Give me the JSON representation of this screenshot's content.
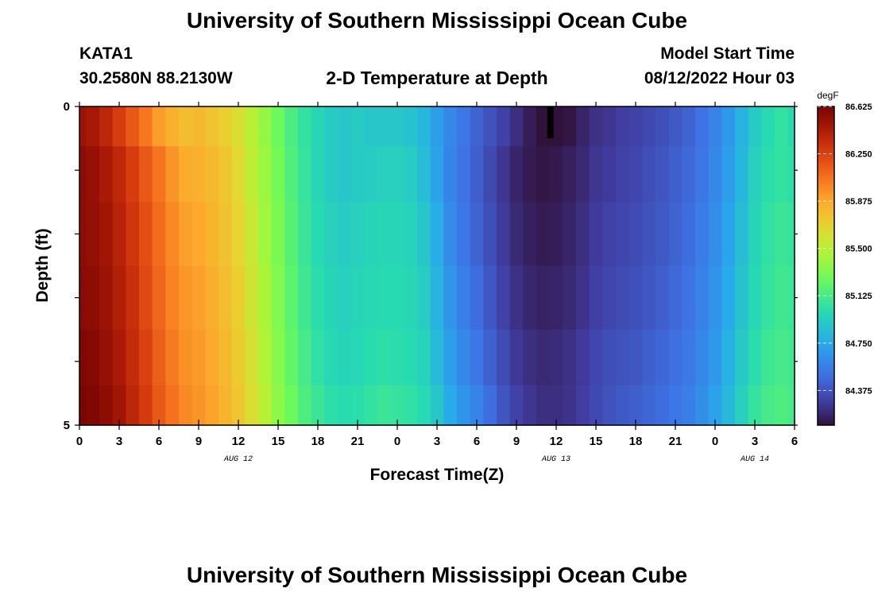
{
  "page": {
    "title": "University of Southern Mississippi Ocean Cube",
    "station": "KATA1",
    "coords": "30.2580N  88.2130W",
    "plot_title": "2-D Temperature at Depth",
    "start_label": "Model Start Time",
    "start_value": "08/12/2022 Hour 03",
    "footer_title": "University of Southern Mississippi Ocean Cube"
  },
  "chart_data": {
    "type": "heatmap",
    "title": "2-D Temperature at Depth",
    "xlabel": "Forecast Time(Z)",
    "ylabel": "Depth (ft)",
    "colorbar_unit": "degF",
    "x_range_hours": [
      0,
      54
    ],
    "y_range": [
      0,
      5
    ],
    "x_ticks": [
      {
        "hour": 0,
        "label": "0"
      },
      {
        "hour": 3,
        "label": "3"
      },
      {
        "hour": 6,
        "label": "6"
      },
      {
        "hour": 9,
        "label": "9"
      },
      {
        "hour": 12,
        "label": "12"
      },
      {
        "hour": 15,
        "label": "15"
      },
      {
        "hour": 18,
        "label": "18"
      },
      {
        "hour": 21,
        "label": "21"
      },
      {
        "hour": 24,
        "label": "0"
      },
      {
        "hour": 27,
        "label": "3"
      },
      {
        "hour": 30,
        "label": "6"
      },
      {
        "hour": 33,
        "label": "9"
      },
      {
        "hour": 36,
        "label": "12"
      },
      {
        "hour": 39,
        "label": "15"
      },
      {
        "hour": 42,
        "label": "18"
      },
      {
        "hour": 45,
        "label": "21"
      },
      {
        "hour": 48,
        "label": "0"
      },
      {
        "hour": 51,
        "label": "3"
      },
      {
        "hour": 54,
        "label": "6"
      }
    ],
    "y_ticks": [
      {
        "value": 0,
        "label": "0"
      },
      {
        "value": 5,
        "label": "5"
      }
    ],
    "date_labels": [
      {
        "hour": 12,
        "label": "AUG 12"
      },
      {
        "hour": 36,
        "label": "AUG 13"
      },
      {
        "hour": 51,
        "label": "AUG 14"
      }
    ],
    "colorbar_min": 84.1,
    "colorbar_max": 86.625,
    "colorbar_ticks": [
      "86.625",
      "86.250",
      "85.875",
      "85.500",
      "85.125",
      "84.750",
      "84.375"
    ],
    "colorbar_tick_values": [
      86.625,
      86.25,
      85.875,
      85.5,
      85.125,
      84.75,
      84.375
    ],
    "depth_levels": [
      0.25,
      1.0,
      2.0,
      3.0,
      4.0,
      4.75
    ],
    "time_hours": [
      0,
      1,
      2,
      3,
      4,
      5,
      6,
      7,
      8,
      9,
      10,
      11,
      12,
      13,
      14,
      15,
      16,
      17,
      18,
      19,
      20,
      21,
      22,
      23,
      24,
      25,
      26,
      27,
      28,
      29,
      30,
      31,
      32,
      33,
      34,
      35,
      36,
      37,
      38,
      39,
      40,
      41,
      42,
      43,
      44,
      45,
      46,
      47,
      48,
      49,
      50,
      51,
      52,
      53,
      54
    ],
    "temperature_degF": [
      [
        86.5,
        86.46,
        86.38,
        86.27,
        86.16,
        86.04,
        85.91,
        85.84,
        85.78,
        85.8,
        85.75,
        85.7,
        85.62,
        85.5,
        85.38,
        85.25,
        85.14,
        85.05,
        84.98,
        84.92,
        84.9,
        84.92,
        84.9,
        84.9,
        84.9,
        84.88,
        84.82,
        84.7,
        84.6,
        84.52,
        84.44,
        84.37,
        84.3,
        84.22,
        84.15,
        84.1,
        84.08,
        84.12,
        84.18,
        84.23,
        84.25,
        84.28,
        84.3,
        84.33,
        84.36,
        84.4,
        84.44,
        84.5,
        84.58,
        84.68,
        84.8,
        84.92,
        85.0,
        85.05,
        85.0
      ],
      [
        86.55,
        86.52,
        86.45,
        86.37,
        86.27,
        86.16,
        86.05,
        85.94,
        85.86,
        85.84,
        85.8,
        85.74,
        85.65,
        85.52,
        85.4,
        85.28,
        85.16,
        85.06,
        84.98,
        84.92,
        84.9,
        84.92,
        84.93,
        84.95,
        84.95,
        84.93,
        84.85,
        84.72,
        84.58,
        84.5,
        84.42,
        84.33,
        84.25,
        84.18,
        84.14,
        84.12,
        84.13,
        84.16,
        84.2,
        84.25,
        84.27,
        84.3,
        84.32,
        84.35,
        84.38,
        84.42,
        84.46,
        84.52,
        84.6,
        84.7,
        84.82,
        84.95,
        85.02,
        85.05,
        85.02
      ],
      [
        86.55,
        86.53,
        86.48,
        86.4,
        86.3,
        86.2,
        86.08,
        85.98,
        85.9,
        85.87,
        85.82,
        85.76,
        85.68,
        85.55,
        85.42,
        85.3,
        85.18,
        85.08,
        85.0,
        84.95,
        84.93,
        84.95,
        84.97,
        84.98,
        84.98,
        84.96,
        84.9,
        84.77,
        84.62,
        84.52,
        84.44,
        84.35,
        84.27,
        84.2,
        84.16,
        84.14,
        84.15,
        84.18,
        84.22,
        84.27,
        84.3,
        84.32,
        84.34,
        84.37,
        84.4,
        84.44,
        84.48,
        84.55,
        84.63,
        84.73,
        84.85,
        84.97,
        85.04,
        85.08,
        85.05
      ],
      [
        86.57,
        86.55,
        86.5,
        86.42,
        86.33,
        86.22,
        86.1,
        86.0,
        85.93,
        85.9,
        85.85,
        85.78,
        85.7,
        85.57,
        85.45,
        85.32,
        85.2,
        85.1,
        85.02,
        84.97,
        84.95,
        84.97,
        84.99,
        85.0,
        85.0,
        84.98,
        84.93,
        84.8,
        84.66,
        84.56,
        84.48,
        84.39,
        84.3,
        84.23,
        84.19,
        84.17,
        84.18,
        84.2,
        84.24,
        84.29,
        84.32,
        84.34,
        84.36,
        84.39,
        84.42,
        84.46,
        84.5,
        84.57,
        84.65,
        84.76,
        84.88,
        84.99,
        85.06,
        85.1,
        85.08
      ],
      [
        86.6,
        86.58,
        86.52,
        86.45,
        86.35,
        86.25,
        86.13,
        86.03,
        85.95,
        85.92,
        85.87,
        85.8,
        85.72,
        85.6,
        85.47,
        85.34,
        85.22,
        85.12,
        85.04,
        84.99,
        84.97,
        84.99,
        85.01,
        85.03,
        85.02,
        85.0,
        84.96,
        84.84,
        84.7,
        84.6,
        84.52,
        84.43,
        84.34,
        84.26,
        84.22,
        84.2,
        84.21,
        84.23,
        84.27,
        84.32,
        84.35,
        84.37,
        84.39,
        84.42,
        84.45,
        84.49,
        84.53,
        84.6,
        84.68,
        84.79,
        84.91,
        85.02,
        85.09,
        85.12,
        85.1
      ],
      [
        86.62,
        86.6,
        86.55,
        86.48,
        86.38,
        86.28,
        86.16,
        86.06,
        85.98,
        85.94,
        85.89,
        85.82,
        85.74,
        85.62,
        85.5,
        85.36,
        85.25,
        85.15,
        85.08,
        85.03,
        85.01,
        85.02,
        85.05,
        85.08,
        85.06,
        85.04,
        85.0,
        84.9,
        84.76,
        84.66,
        84.58,
        84.48,
        84.38,
        84.3,
        84.25,
        84.22,
        84.22,
        84.24,
        84.28,
        84.33,
        84.37,
        84.4,
        84.42,
        84.45,
        84.48,
        84.52,
        84.56,
        84.63,
        84.72,
        84.83,
        84.95,
        85.06,
        85.12,
        85.15,
        85.12
      ]
    ],
    "min_marker": {
      "hour": 35.5,
      "depth_range": [
        0,
        0.5
      ]
    }
  }
}
